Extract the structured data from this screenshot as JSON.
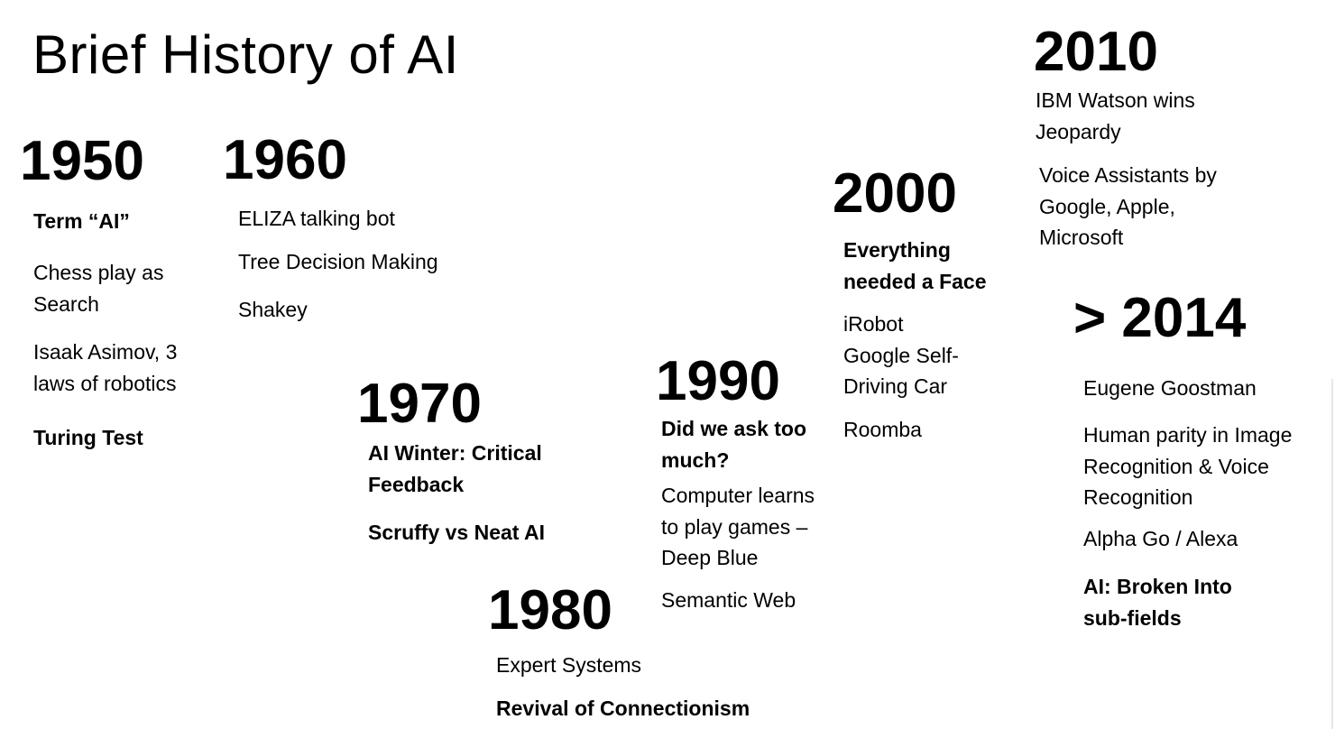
{
  "title": "Brief History of AI",
  "eras": {
    "e1950": {
      "year": "1950",
      "items": [
        "Term “AI”",
        "Chess play as",
        "Search",
        "Isaak Asimov, 3",
        "laws of robotics",
        "Turing Test"
      ]
    },
    "e1960": {
      "year": "1960",
      "items": [
        "ELIZA talking bot",
        "Tree Decision Making",
        "Shakey"
      ]
    },
    "e1970": {
      "year": "1970",
      "items": [
        "AI Winter: Critical",
        "Feedback",
        "Scruffy vs Neat AI"
      ]
    },
    "e1980": {
      "year": "1980",
      "items": [
        "Expert Systems",
        "Revival of Connectionism"
      ]
    },
    "e1990": {
      "year": "1990",
      "items": [
        "Did we ask too",
        "much?",
        "Computer learns",
        "to play games –",
        "Deep Blue",
        "Semantic Web"
      ]
    },
    "e2000": {
      "year": "2000",
      "items": [
        "Everything",
        "needed a Face",
        "iRobot",
        "Google Self-",
        "Driving Car",
        "Roomba"
      ]
    },
    "e2010": {
      "year": "2010",
      "items": [
        "IBM Watson wins",
        "Jeopardy",
        "Voice Assistants by",
        "Google, Apple,",
        "Microsoft"
      ]
    },
    "e2014": {
      "year": "> 2014",
      "items": [
        "Eugene Goostman",
        "Human parity in Image",
        "Recognition & Voice",
        "Recognition",
        "Alpha Go / Alexa",
        "AI: Broken Into",
        "sub-fields"
      ]
    }
  }
}
